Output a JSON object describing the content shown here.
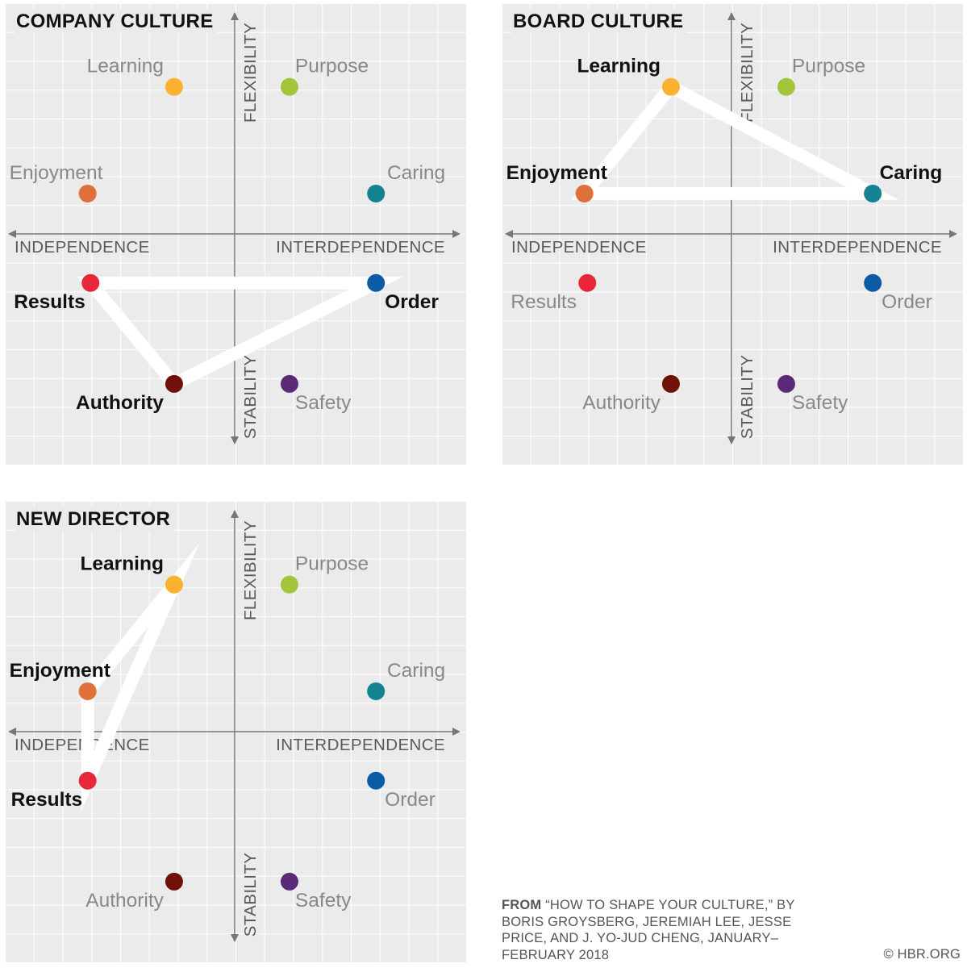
{
  "chart_data": [
    {
      "type": "scatter",
      "title": "COMPANY CULTURE",
      "axes": {
        "y_top": "FLEXIBILITY",
        "y_bottom": "STABILITY",
        "x_left": "INDEPENDENCE",
        "x_right": "INTERDEPENDENCE"
      },
      "xlim": [
        -8,
        8
      ],
      "ylim": [
        -7,
        8
      ],
      "points": [
        {
          "name": "Learning",
          "x": -2.1,
          "y": 5.1,
          "color": "#fbb231",
          "highlighted": false
        },
        {
          "name": "Purpose",
          "x": 1.9,
          "y": 5.1,
          "color": "#a2c53b",
          "highlighted": false
        },
        {
          "name": "Enjoyment",
          "x": -5.1,
          "y": 1.4,
          "color": "#e0703a",
          "highlighted": false
        },
        {
          "name": "Caring",
          "x": 4.9,
          "y": 1.4,
          "color": "#148391",
          "highlighted": false
        },
        {
          "name": "Results",
          "x": -5.0,
          "y": -1.7,
          "color": "#e8283a",
          "highlighted": true
        },
        {
          "name": "Order",
          "x": 4.9,
          "y": -1.7,
          "color": "#0b5ba7",
          "highlighted": true
        },
        {
          "name": "Authority",
          "x": -2.1,
          "y": -5.2,
          "color": "#6f1108",
          "highlighted": true
        },
        {
          "name": "Safety",
          "x": 1.9,
          "y": -5.2,
          "color": "#5b2a76",
          "highlighted": false
        }
      ],
      "polygon": [
        "Results",
        "Order",
        "Authority"
      ]
    },
    {
      "type": "scatter",
      "title": "BOARD CULTURE",
      "axes": {
        "y_top": "FLEXIBILITY",
        "y_bottom": "STABILITY",
        "x_left": "INDEPENDENCE",
        "x_right": "INTERDEPENDENCE"
      },
      "xlim": [
        -8,
        8
      ],
      "ylim": [
        -7,
        8
      ],
      "points": [
        {
          "name": "Learning",
          "x": -2.1,
          "y": 5.1,
          "color": "#fbb231",
          "highlighted": true
        },
        {
          "name": "Purpose",
          "x": 1.9,
          "y": 5.1,
          "color": "#a2c53b",
          "highlighted": false
        },
        {
          "name": "Enjoyment",
          "x": -5.1,
          "y": 1.4,
          "color": "#e0703a",
          "highlighted": true
        },
        {
          "name": "Caring",
          "x": 4.9,
          "y": 1.4,
          "color": "#148391",
          "highlighted": true
        },
        {
          "name": "Results",
          "x": -5.0,
          "y": -1.7,
          "color": "#e8283a",
          "highlighted": false
        },
        {
          "name": "Order",
          "x": 4.9,
          "y": -1.7,
          "color": "#0b5ba7",
          "highlighted": false
        },
        {
          "name": "Authority",
          "x": -2.1,
          "y": -5.2,
          "color": "#6f1108",
          "highlighted": false
        },
        {
          "name": "Safety",
          "x": 1.9,
          "y": -5.2,
          "color": "#5b2a76",
          "highlighted": false
        }
      ],
      "polygon": [
        "Learning",
        "Caring",
        "Enjoyment"
      ]
    },
    {
      "type": "scatter",
      "title": "NEW DIRECTOR",
      "axes": {
        "y_top": "FLEXIBILITY",
        "y_bottom": "STABILITY",
        "x_left": "INDEPENDENCE",
        "x_right": "INTERDEPENDENCE"
      },
      "xlim": [
        -8,
        8
      ],
      "ylim": [
        -7,
        8
      ],
      "points": [
        {
          "name": "Learning",
          "x": -2.1,
          "y": 5.1,
          "color": "#fbb231",
          "highlighted": true
        },
        {
          "name": "Purpose",
          "x": 1.9,
          "y": 5.1,
          "color": "#a2c53b",
          "highlighted": false
        },
        {
          "name": "Enjoyment",
          "x": -5.1,
          "y": 1.4,
          "color": "#e0703a",
          "highlighted": true
        },
        {
          "name": "Caring",
          "x": 4.9,
          "y": 1.4,
          "color": "#148391",
          "highlighted": false
        },
        {
          "name": "Results",
          "x": -5.1,
          "y": -1.7,
          "color": "#e8283a",
          "highlighted": true
        },
        {
          "name": "Order",
          "x": 4.9,
          "y": -1.7,
          "color": "#0b5ba7",
          "highlighted": false
        },
        {
          "name": "Authority",
          "x": -2.1,
          "y": -5.2,
          "color": "#6f1108",
          "highlighted": false
        },
        {
          "name": "Safety",
          "x": 1.9,
          "y": -5.2,
          "color": "#5b2a76",
          "highlighted": false
        }
      ],
      "polygon": [
        "Learning",
        "Enjoyment",
        "Results"
      ]
    }
  ],
  "source": {
    "from_label": "FROM",
    "text": "“HOW TO SHAPE YOUR CULTURE,” BY BORIS GROYSBERG, JEREMIAH LEE, JESSE PRICE, AND J. YO-JUD CHENG, JANUARY–FEBRUARY 2018"
  },
  "credit": "© HBR.ORG",
  "colors": {
    "background": "#ebebeb",
    "grid": "#ffffff",
    "axis": "#777777",
    "highlight_text": "#111111",
    "muted_text": "#888888",
    "polygon": "#ffffff"
  }
}
